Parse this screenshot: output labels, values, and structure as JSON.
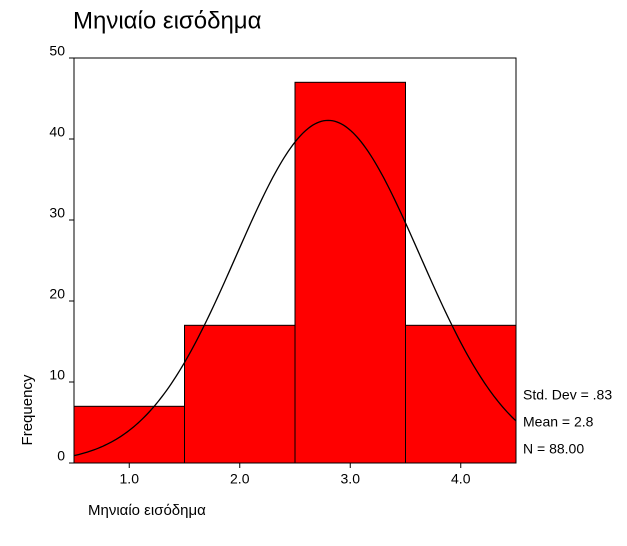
{
  "chart_data": {
    "type": "histogram",
    "title": "Μηνιαίο εισόδημα",
    "x_label": "Μηνιαίο εισόδημα",
    "y_label": "Frequency",
    "bins": [
      0.5,
      1.5,
      2.5,
      3.5,
      4.5
    ],
    "values": [
      7,
      17,
      47,
      17
    ],
    "color": "#ff0000",
    "xlim": [
      0.5,
      4.5
    ],
    "xticks": [
      {
        "value": 1,
        "label": "1.0"
      },
      {
        "value": 2,
        "label": "2.0"
      },
      {
        "value": 3,
        "label": "3.0"
      },
      {
        "value": 4,
        "label": "4.0"
      }
    ],
    "ylim": [
      0,
      50
    ],
    "yticks": [
      0,
      10,
      20,
      30,
      40,
      50
    ],
    "normal_curve": {
      "mean": 2.8,
      "std_dev": 0.83,
      "n": 88
    },
    "stats_labels": [
      "Std. Dev = .83",
      "Mean = 2.8",
      "N = 88.00"
    ]
  }
}
